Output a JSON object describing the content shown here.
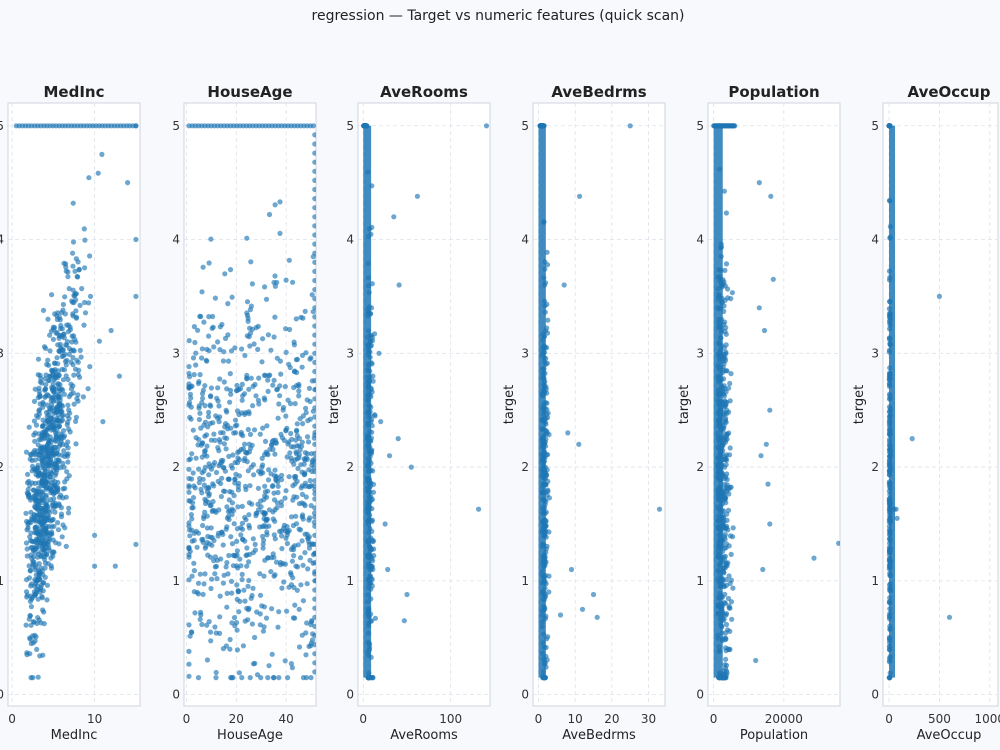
{
  "suptitle": "regression — Target vs numeric features (quick scan)",
  "colors": {
    "point": "#1f77b4",
    "background": "#f7f9fc"
  },
  "chart_data": [
    {
      "type": "scatter",
      "title": "MedInc",
      "xlabel": "MedInc",
      "ylabel": "target",
      "xlim": [
        -0.5,
        15.5
      ],
      "ylim": [
        -0.1,
        5.2
      ],
      "xticks": [
        0,
        10
      ],
      "yticks": [
        0,
        1,
        2,
        3,
        4,
        5
      ],
      "grid": true,
      "outliers": [
        [
          15,
          5
        ],
        [
          15,
          4
        ],
        [
          15,
          3.5
        ],
        [
          15,
          1.32
        ],
        [
          10,
          1.13
        ],
        [
          12.5,
          1.13
        ],
        [
          13,
          2.8
        ],
        [
          12,
          3.2
        ],
        [
          14,
          4.5
        ],
        [
          10,
          1.4
        ],
        [
          9.5,
          3.5
        ],
        [
          11,
          2.4
        ]
      ]
    },
    {
      "type": "scatter",
      "title": "HouseAge",
      "xlabel": "HouseAge",
      "ylabel": "target",
      "xlim": [
        -1,
        52
      ],
      "ylim": [
        -0.1,
        5.2
      ],
      "xticks": [
        0,
        20,
        40
      ],
      "yticks": [
        0,
        1,
        2,
        3,
        4,
        5
      ],
      "grid": true,
      "outliers": [
        [
          2,
          0.55
        ],
        [
          48,
          0.35
        ],
        [
          1,
          1.9
        ],
        [
          50,
          0.15
        ]
      ]
    },
    {
      "type": "scatter",
      "title": "AveRooms",
      "xlabel": "AveRooms",
      "ylabel": "target",
      "xlim": [
        -6,
        145
      ],
      "ylim": [
        -0.1,
        5.2
      ],
      "xticks": [
        0,
        100
      ],
      "yticks": [
        0,
        1,
        2,
        3,
        4,
        5
      ],
      "grid": true,
      "outliers": [
        [
          141,
          5
        ],
        [
          62,
          4.38
        ],
        [
          132,
          1.63
        ],
        [
          50,
          0.88
        ],
        [
          47,
          0.65
        ],
        [
          40,
          2.25
        ],
        [
          30,
          2.1
        ],
        [
          35,
          4.2
        ],
        [
          25,
          1.5
        ],
        [
          20,
          2.4
        ],
        [
          41,
          3.6
        ],
        [
          28,
          1.1
        ],
        [
          55,
          2.0
        ],
        [
          18,
          3.0
        ]
      ]
    },
    {
      "type": "scatter",
      "title": "AveBedrms",
      "xlabel": "AveBedrms",
      "ylabel": "target",
      "xlim": [
        -1.5,
        34.5
      ],
      "ylim": [
        -0.1,
        5.2
      ],
      "xticks": [
        0,
        10,
        20,
        30
      ],
      "yticks": [
        0,
        1,
        2,
        3,
        4,
        5
      ],
      "grid": true,
      "outliers": [
        [
          25,
          5
        ],
        [
          11.2,
          4.38
        ],
        [
          33,
          1.63
        ],
        [
          15,
          0.88
        ],
        [
          16,
          0.68
        ],
        [
          11,
          2.2
        ],
        [
          8,
          2.3
        ],
        [
          7,
          3.6
        ],
        [
          6,
          0.7
        ],
        [
          9,
          1.1
        ],
        [
          12,
          0.75
        ]
      ]
    },
    {
      "type": "scatter",
      "title": "Population",
      "xlabel": "Population",
      "ylabel": "target",
      "xlim": [
        -1600,
        36000
      ],
      "ylim": [
        -0.1,
        5.2
      ],
      "xticks": [
        0,
        20000
      ],
      "yticks": [
        0,
        1,
        2,
        3,
        4,
        5
      ],
      "grid": true,
      "outliers": [
        [
          35600,
          1.33
        ],
        [
          28600,
          1.2
        ],
        [
          16300,
          4.38
        ],
        [
          13000,
          4.5
        ],
        [
          15000,
          2.2
        ],
        [
          13000,
          3.4
        ],
        [
          16000,
          2.5
        ],
        [
          14000,
          1.1
        ],
        [
          12000,
          0.3
        ],
        [
          16000,
          1.5
        ],
        [
          13500,
          2.1
        ],
        [
          14500,
          3.2
        ],
        [
          17000,
          3.65
        ],
        [
          15500,
          1.85
        ]
      ]
    },
    {
      "type": "scatter",
      "title": "AveOccup",
      "xlabel": "AveOccup",
      "ylabel": "target",
      "xlim": [
        -60,
        1250
      ],
      "ylim": [
        -0.1,
        5.2
      ],
      "xticks": [
        0,
        500,
        1000
      ],
      "yticks": [
        0,
        1,
        2,
        3,
        4,
        5
      ],
      "grid": true,
      "outliers": [
        [
          500,
          3.5
        ],
        [
          230,
          2.25
        ],
        [
          600,
          0.68
        ],
        [
          80,
          1.55
        ],
        [
          50,
          1.63
        ],
        [
          70,
          1.63
        ]
      ]
    }
  ]
}
